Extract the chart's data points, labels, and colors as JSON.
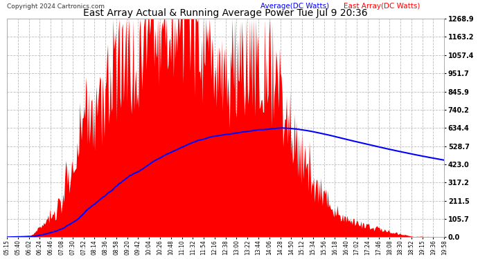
{
  "title": "East Array Actual & Running Average Power Tue Jul 9 20:36",
  "copyright": "Copyright 2024 Cartronics.com",
  "legend_avg": "Average(DC Watts)",
  "legend_east": "East Array(DC Watts)",
  "y_tick_labels": [
    "0.0",
    "105.7",
    "211.5",
    "317.2",
    "423.0",
    "528.7",
    "634.4",
    "740.2",
    "845.9",
    "951.7",
    "1057.4",
    "1163.2",
    "1268.9"
  ],
  "y_tick_values": [
    0.0,
    105.7,
    211.5,
    317.2,
    423.0,
    528.7,
    634.4,
    740.2,
    845.9,
    951.7,
    1057.4,
    1163.2,
    1268.9
  ],
  "ymax": 1268.9,
  "bg_color": "#ffffff",
  "grid_color": "#bbbbbb",
  "fill_color": "#ff0000",
  "avg_color": "#0000ff",
  "title_color": "#000000",
  "legend_avg_color": "#0000ff",
  "legend_east_color": "#ff0000",
  "x_labels": [
    "05:15",
    "05:40",
    "06:02",
    "06:24",
    "06:46",
    "07:08",
    "07:30",
    "07:52",
    "08:14",
    "08:36",
    "08:58",
    "09:20",
    "09:42",
    "10:04",
    "10:26",
    "10:48",
    "11:10",
    "11:32",
    "11:54",
    "12:16",
    "12:38",
    "13:00",
    "13:22",
    "13:44",
    "14:06",
    "14:28",
    "14:50",
    "15:12",
    "15:34",
    "15:56",
    "16:18",
    "16:40",
    "17:02",
    "17:24",
    "17:46",
    "18:08",
    "18:30",
    "18:52",
    "19:15",
    "19:36",
    "19:58"
  ],
  "figwidth": 6.9,
  "figheight": 3.75,
  "dpi": 100
}
